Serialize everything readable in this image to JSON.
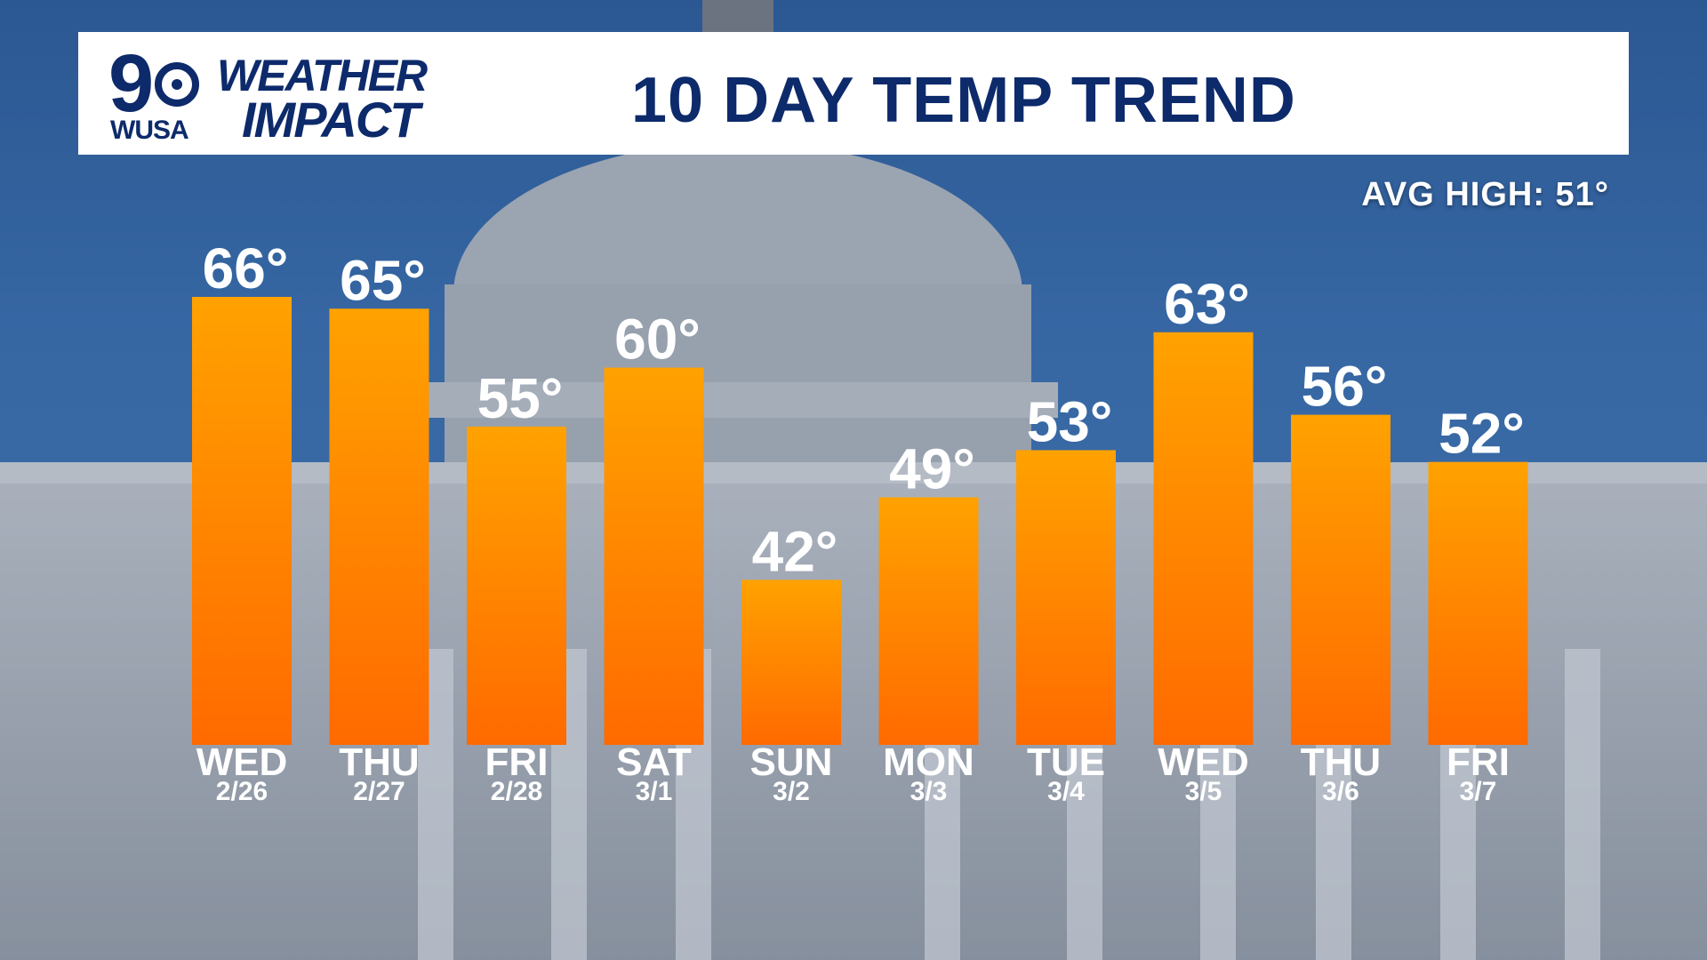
{
  "header": {
    "logo_number": "9",
    "logo_station": "WUSA",
    "logo_brand_line1": "WEATHER",
    "logo_brand_line2": "IMPACT",
    "title": "10 DAY TEMP TREND"
  },
  "avg_high_text": "AVG HIGH: 51°",
  "colors": {
    "bar_top": "#ffa200",
    "bar_bottom": "#ff6a00",
    "header_text": "#0d2a6b",
    "sky": "#3d72b3"
  },
  "chart_data": {
    "type": "bar",
    "categories": [
      "WED",
      "THU",
      "FRI",
      "SAT",
      "SUN",
      "MON",
      "TUE",
      "WED",
      "THU",
      "FRI"
    ],
    "dates": [
      "2/26",
      "2/27",
      "2/28",
      "3/1",
      "3/2",
      "3/3",
      "3/4",
      "3/5",
      "3/6",
      "3/7"
    ],
    "values": [
      66,
      65,
      55,
      60,
      42,
      49,
      53,
      63,
      56,
      52
    ],
    "value_labels": [
      "66°",
      "65°",
      "55°",
      "60°",
      "42°",
      "49°",
      "53°",
      "63°",
      "56°",
      "52°"
    ],
    "title": "10 DAY TEMP TREND",
    "xlabel": "",
    "ylabel": "",
    "ylim": [
      28,
      66
    ],
    "grid": false,
    "legend": "none"
  }
}
